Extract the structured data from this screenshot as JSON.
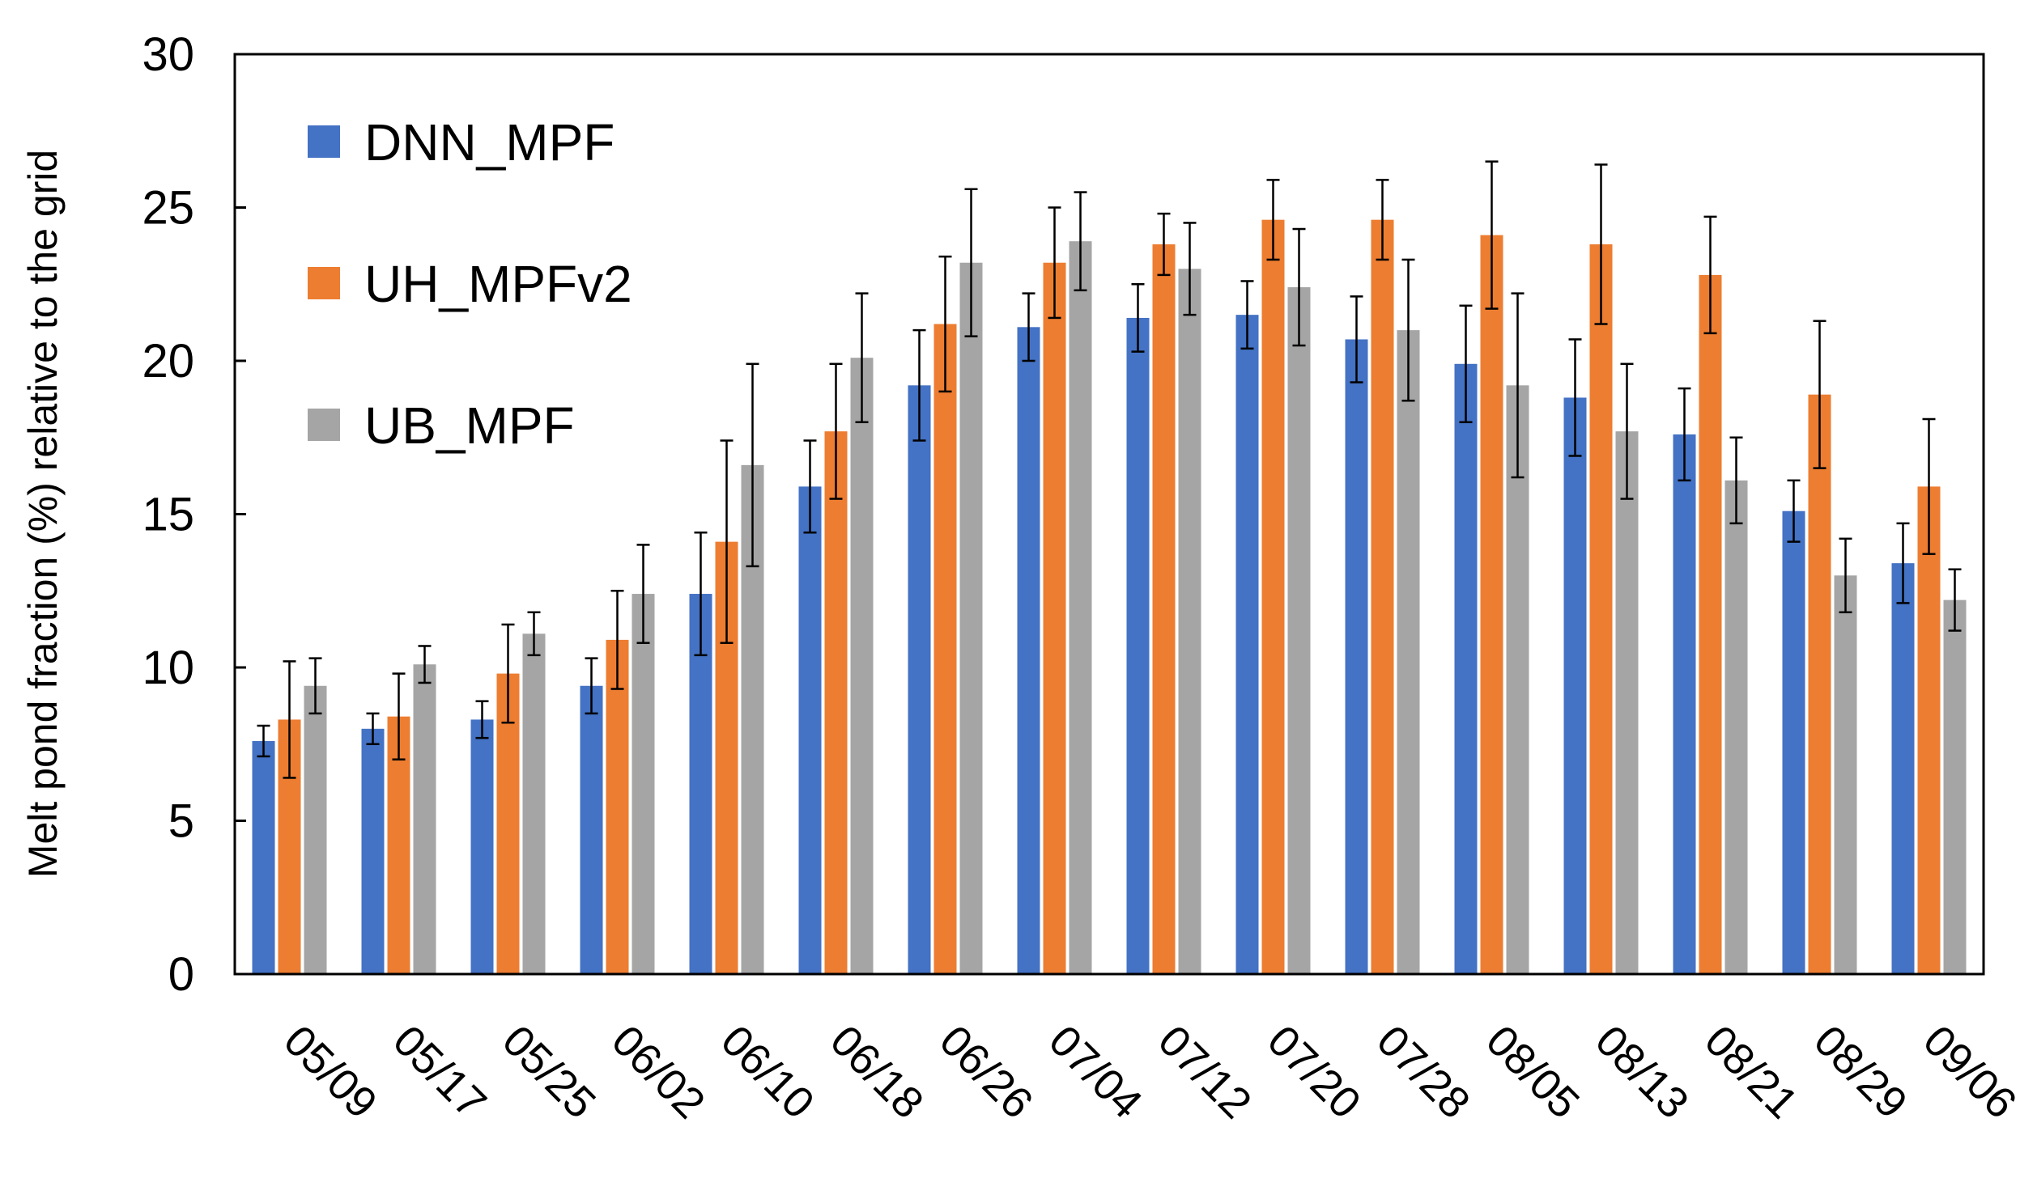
{
  "chart_data": {
    "type": "bar",
    "title": "",
    "xlabel": "",
    "ylabel": "Melt pond fraction (%) relative to the grid",
    "ylim": [
      0,
      30
    ],
    "yticks": [
      "0",
      "5",
      "10",
      "15",
      "20",
      "25",
      "30"
    ],
    "grid": false,
    "legend_position": "top-left",
    "categories": [
      "05/09",
      "05/17",
      "05/25",
      "06/02",
      "06/10",
      "06/18",
      "06/26",
      "07/04",
      "07/12",
      "07/20",
      "07/28",
      "08/05",
      "08/13",
      "08/21",
      "08/29",
      "09/06"
    ],
    "series": [
      {
        "name": "DNN_MPF",
        "color": "#4472C4",
        "values": [
          7.6,
          8.0,
          8.3,
          9.4,
          12.4,
          15.9,
          19.2,
          21.1,
          21.4,
          21.5,
          20.7,
          19.9,
          18.8,
          17.6,
          15.1,
          13.4
        ],
        "errors": [
          0.5,
          0.5,
          0.6,
          0.9,
          2.0,
          1.5,
          1.8,
          1.1,
          1.1,
          1.1,
          1.4,
          1.9,
          1.9,
          1.5,
          1.0,
          1.3
        ]
      },
      {
        "name": "UH_MPFv2",
        "color": "#ED7D31",
        "values": [
          8.3,
          8.4,
          9.8,
          10.9,
          14.1,
          17.7,
          21.2,
          23.2,
          23.8,
          24.6,
          24.6,
          24.1,
          23.8,
          22.8,
          18.9,
          15.9
        ],
        "errors": [
          1.9,
          1.4,
          1.6,
          1.6,
          3.3,
          2.2,
          2.2,
          1.8,
          1.0,
          1.3,
          1.3,
          2.4,
          2.6,
          1.9,
          2.4,
          2.2
        ]
      },
      {
        "name": "UB_MPF",
        "color": "#A5A5A5",
        "values": [
          9.4,
          10.1,
          11.1,
          12.4,
          16.6,
          20.1,
          23.2,
          23.9,
          23.0,
          22.4,
          21.0,
          19.2,
          17.7,
          16.1,
          13.0,
          12.2
        ],
        "errors": [
          0.9,
          0.6,
          0.7,
          1.6,
          3.3,
          2.1,
          2.4,
          1.6,
          1.5,
          1.9,
          2.3,
          3.0,
          2.2,
          1.4,
          1.2,
          1.0
        ]
      }
    ]
  }
}
